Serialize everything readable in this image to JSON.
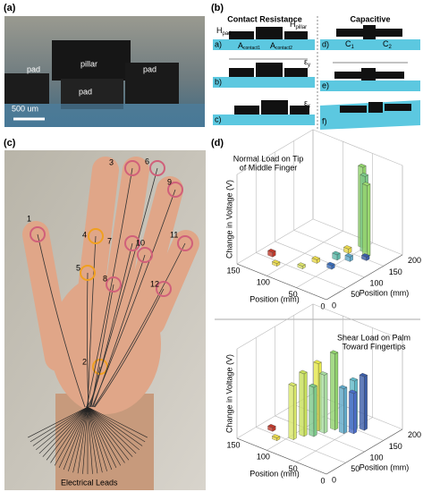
{
  "panel_a": {
    "label": "(a)",
    "labels": [
      "pad",
      "pillar",
      "pad",
      "pad"
    ],
    "scale_bar": "500 um"
  },
  "panel_b": {
    "label": "(b)",
    "contact_title": "Contact Resistance",
    "capacitive_title": "Capacitive",
    "h_pad": {
      "base": "H",
      "sub": "pad"
    },
    "h_pillar": {
      "base": "H",
      "sub": "pillar"
    },
    "a_contact1": {
      "base": "A",
      "sub": "contact1"
    },
    "a_contact2": {
      "base": "A",
      "sub": "contact2"
    },
    "c1": {
      "base": "C",
      "sub": "1"
    },
    "c2": {
      "base": "C",
      "sub": "2"
    },
    "rows": [
      "a)",
      "b)",
      "c)",
      "d)",
      "e)",
      "f)"
    ],
    "strain_y": {
      "base": "ε",
      "sub": "y"
    },
    "strain_x": {
      "base": "ε",
      "sub": "x"
    }
  },
  "panel_c": {
    "label": "(c)",
    "sensors": [
      "1",
      "2",
      "3",
      "4",
      "5",
      "6",
      "7",
      "8",
      "9",
      "10",
      "11",
      "12"
    ],
    "leads": "Electrical Leads"
  },
  "panel_d": {
    "label": "(d)"
  },
  "chart_data": [
    {
      "type": "bar3d",
      "title": [
        "Normal Load on Tip",
        "of Middle Finger"
      ],
      "zlabel": "Change in Voltage (V)",
      "xlabel": "Position (mm)",
      "ylabel": "Position (mm)",
      "xlim": [
        0,
        150
      ],
      "xticks": [
        150,
        100,
        50,
        0
      ],
      "ylim": [
        0,
        200
      ],
      "yticks": [
        0,
        50,
        100,
        150,
        200
      ],
      "zlim": [
        0,
        1
      ],
      "x": [
        130,
        110,
        55,
        60,
        75,
        45,
        60,
        80,
        35,
        45,
        30,
        50
      ],
      "y": [
        60,
        40,
        180,
        150,
        90,
        170,
        120,
        60,
        160,
        130,
        150,
        90
      ],
      "values": [
        0.05,
        0.03,
        0.9,
        0.05,
        0.04,
        0.85,
        0.06,
        0.03,
        0.8,
        0.05,
        0.04,
        0.04
      ],
      "colors": [
        "#c0392b",
        "#e8d84a",
        "#8fd16b",
        "#e8d84a",
        "#e8d84a",
        "#7cc98a",
        "#5fb8a8",
        "#d9e06a",
        "#9ad870",
        "#5fa8c8",
        "#3a5ca8",
        "#3a6cb8"
      ]
    },
    {
      "type": "bar3d",
      "title": [
        "Shear Load on Palm",
        "Toward Fingertips"
      ],
      "zlabel": "Change in Voltage (V)",
      "xlabel": "Position (mm)",
      "ylabel": "Position (mm)",
      "xlim": [
        0,
        150
      ],
      "xticks": [
        150,
        100,
        50,
        0
      ],
      "ylim": [
        0,
        200
      ],
      "yticks": [
        0,
        50,
        100,
        150,
        200
      ],
      "zlim": [
        0,
        1
      ],
      "x": [
        130,
        110,
        85,
        90,
        95,
        70,
        75,
        80,
        50,
        55,
        40,
        45
      ],
      "y": [
        60,
        40,
        110,
        80,
        60,
        130,
        110,
        90,
        150,
        130,
        160,
        140
      ],
      "values": [
        0.04,
        0.03,
        0.75,
        0.7,
        0.6,
        0.85,
        0.65,
        0.55,
        0.55,
        0.5,
        0.6,
        0.45
      ],
      "colors": [
        "#c0392b",
        "#e8d84a",
        "#e6e84a",
        "#c8e05a",
        "#d9e86a",
        "#8fd16b",
        "#a8dca0",
        "#7cc98a",
        "#5fb8c8",
        "#5fa8c8",
        "#3a5ca8",
        "#4a6cc8"
      ]
    }
  ]
}
